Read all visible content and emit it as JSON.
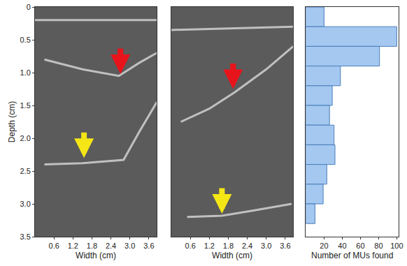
{
  "chart_data": [
    {
      "type": "image",
      "xlabel": "Width (cm)",
      "ylabel": "Depth (cm)",
      "xlim": [
        0,
        3.85
      ],
      "xticks": [
        0.6,
        1.2,
        1.8,
        2.4,
        {
          "value": 3.0,
          "label": "3.0"
        },
        3.6
      ],
      "ylim": [
        3.5,
        0
      ],
      "yticks": [
        0,
        0.5,
        {
          "value": 1.0,
          "label": "1.0"
        },
        1.5,
        {
          "value": 2.0,
          "label": "2.0"
        },
        2.5,
        {
          "value": 3.0,
          "label": "3.0"
        },
        3.5
      ],
      "boundaries": [
        {
          "x": [
            0,
            3.85
          ],
          "y": [
            0.2,
            0.2
          ]
        },
        {
          "x": [
            0.3,
            1.5,
            2.65,
            3.3,
            3.85
          ],
          "y": [
            0.8,
            0.95,
            1.05,
            0.85,
            0.7
          ]
        },
        {
          "x": [
            0.3,
            1.5,
            2.8,
            3.3,
            3.85
          ],
          "y": [
            2.4,
            2.38,
            2.33,
            1.9,
            1.45
          ]
        }
      ],
      "arrows": [
        {
          "x": 2.7,
          "y": 1.02,
          "color": "#e8141b"
        },
        {
          "x": 1.55,
          "y": 2.3,
          "color": "#f5e616"
        }
      ]
    },
    {
      "type": "image",
      "xlabel": "Width (cm)",
      "tick_labels": "x",
      "xlim": [
        0,
        3.85
      ],
      "xticks": [
        0.6,
        1.2,
        1.8,
        2.4,
        {
          "value": 3.0,
          "label": "3.0"
        },
        3.6
      ],
      "ylim": [
        3.5,
        0
      ],
      "boundaries": [
        {
          "x": [
            0,
            3.85
          ],
          "y": [
            0.35,
            0.3
          ]
        },
        {
          "x": [
            0.3,
            1.2,
            2.0,
            3.0,
            3.85
          ],
          "y": [
            1.75,
            1.55,
            1.3,
            0.95,
            0.6
          ]
        },
        {
          "x": [
            0.5,
            1.6,
            2.6,
            3.8
          ],
          "y": [
            3.2,
            3.18,
            3.1,
            3.0
          ]
        }
      ],
      "arrows": [
        {
          "x": 1.95,
          "y": 1.25,
          "color": "#e8141b"
        },
        {
          "x": 1.6,
          "y": 3.15,
          "color": "#f5e616"
        }
      ]
    },
    {
      "type": "histogram",
      "orientation": "horizontal",
      "tick_labels": "x",
      "xlabel": "Number of MUs found",
      "bins": [
        0,
        0.3,
        0.6,
        0.9,
        1.2,
        1.5,
        1.8,
        2.1,
        2.4,
        2.7,
        3.0,
        3.3
      ],
      "counts": [
        20,
        100,
        81,
        38,
        29,
        26,
        31,
        32,
        23,
        19,
        10
      ],
      "color": "#a4c8f0",
      "xlim": [
        0,
        102
      ],
      "xticks": [
        20,
        40,
        60,
        80,
        100
      ],
      "ylim": [
        3.5,
        0
      ]
    }
  ]
}
